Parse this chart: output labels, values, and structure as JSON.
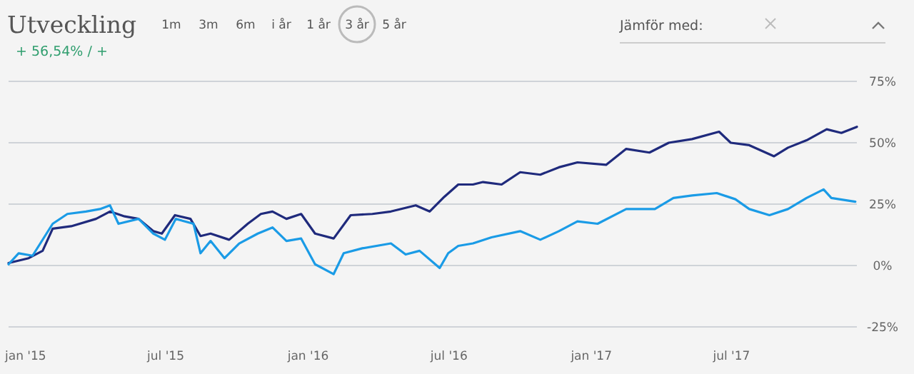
{
  "chart_data": {
    "type": "line",
    "title": "Utveckling",
    "subtitle": "+ 56,54% / +",
    "annotations": [
      "1m",
      "3m",
      "6m",
      "i år",
      "1 år",
      "3 år",
      "5 år",
      "Jämför med:"
    ],
    "xlim": [
      "2014-12-10",
      "2017-12-10"
    ],
    "xticks": [
      {
        "value": "2015-01-01",
        "label": "jan '15"
      },
      {
        "value": "2015-07-01",
        "label": "jul '15"
      },
      {
        "value": "2016-01-01",
        "label": "jan '16"
      },
      {
        "value": "2016-07-01",
        "label": "jul '16"
      },
      {
        "value": "2017-01-01",
        "label": "jan '17"
      },
      {
        "value": "2017-07-01",
        "label": "jul '17"
      }
    ],
    "ylim": [
      -25,
      75
    ],
    "yticks": [
      {
        "value": -25,
        "label": "-25%"
      },
      {
        "value": 0,
        "label": "0%"
      },
      {
        "value": 25,
        "label": "25%"
      },
      {
        "value": 50,
        "label": "50%"
      },
      {
        "value": 75,
        "label": "75%"
      }
    ],
    "grid": "y",
    "marker": "none",
    "line_style": "solid",
    "series": [
      {
        "color": "#1f2a7c",
        "x": [
          "2014-12-10",
          "2015-01-05",
          "2015-01-23",
          "2015-02-05",
          "2015-03-01",
          "2015-04-02",
          "2015-04-20",
          "2015-05-09",
          "2015-05-27",
          "2015-06-15",
          "2015-06-26",
          "2015-07-13",
          "2015-08-02",
          "2015-08-15",
          "2015-08-28",
          "2015-09-21",
          "2015-10-15",
          "2015-11-01",
          "2015-11-16",
          "2015-12-04",
          "2015-12-23",
          "2016-01-10",
          "2016-02-03",
          "2016-02-25",
          "2016-03-24",
          "2016-04-17",
          "2016-05-19",
          "2016-06-06",
          "2016-06-25",
          "2016-07-13",
          "2016-08-01",
          "2016-08-14",
          "2016-09-07",
          "2016-10-01",
          "2016-10-27",
          "2016-11-20",
          "2016-12-14",
          "2017-01-20",
          "2017-02-15",
          "2017-03-17",
          "2017-04-11",
          "2017-05-11",
          "2017-06-15",
          "2017-06-30",
          "2017-07-24",
          "2017-08-25",
          "2017-09-12",
          "2017-10-06",
          "2017-11-01",
          "2017-11-20",
          "2017-12-10"
        ],
        "values": [
          1,
          3,
          6,
          15,
          16,
          19,
          22,
          20,
          19,
          14,
          13,
          20.5,
          19,
          12,
          13,
          10.5,
          17,
          21,
          22,
          19,
          21,
          13,
          11,
          20.5,
          21,
          22,
          24.5,
          22,
          28,
          33,
          33,
          34,
          33,
          38,
          37,
          40,
          42,
          41,
          47.5,
          46,
          50,
          51.5,
          54.5,
          50,
          49,
          44.5,
          48,
          51,
          55.5,
          54,
          56.5
        ]
      },
      {
        "color": "#1a9be6",
        "x": [
          "2014-12-10",
          "2014-12-23",
          "2015-01-10",
          "2015-02-05",
          "2015-02-24",
          "2015-03-20",
          "2015-04-07",
          "2015-04-20",
          "2015-05-01",
          "2015-05-27",
          "2015-06-15",
          "2015-06-30",
          "2015-07-14",
          "2015-08-06",
          "2015-08-15",
          "2015-08-28",
          "2015-09-15",
          "2015-10-04",
          "2015-10-28",
          "2015-11-16",
          "2015-12-04",
          "2015-12-23",
          "2016-01-10",
          "2016-02-03",
          "2016-02-16",
          "2016-03-11",
          "2016-04-17",
          "2016-05-06",
          "2016-05-24",
          "2016-06-19",
          "2016-06-30",
          "2016-07-13",
          "2016-08-01",
          "2016-08-25",
          "2016-10-01",
          "2016-10-27",
          "2016-11-20",
          "2016-12-14",
          "2017-01-09",
          "2017-02-15",
          "2017-03-24",
          "2017-04-17",
          "2017-05-11",
          "2017-06-12",
          "2017-07-06",
          "2017-07-24",
          "2017-08-19",
          "2017-09-12",
          "2017-10-06",
          "2017-10-28",
          "2017-11-07",
          "2017-12-08"
        ],
        "values": [
          0.5,
          5,
          4,
          17,
          21,
          22,
          23,
          24.5,
          17,
          19,
          13,
          10.5,
          19,
          17,
          5,
          10,
          3,
          9,
          13,
          15.5,
          10,
          11,
          0.5,
          -3.5,
          5,
          7,
          9,
          4.5,
          6,
          -1,
          5,
          8,
          9,
          11.5,
          14,
          10.5,
          14,
          18,
          17,
          23,
          23,
          27.5,
          28.5,
          29.5,
          27,
          23,
          20.5,
          23,
          27.5,
          31,
          27.5,
          26
        ]
      }
    ]
  }
}
